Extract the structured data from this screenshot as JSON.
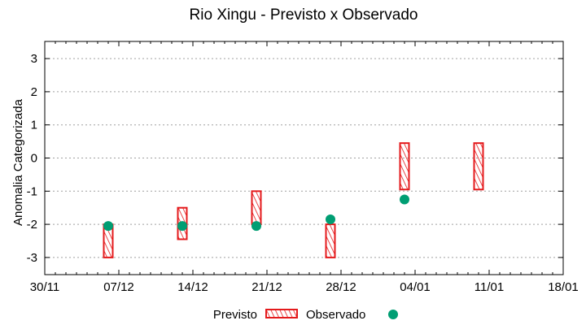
{
  "chart_data": {
    "type": "box-range + scatter",
    "title": "Rio Xingu - Previsto x Observado",
    "xlabel": "",
    "ylabel": "Anomalia Categorizada",
    "ylim": [
      -3.5,
      3.5
    ],
    "yticks": [
      3,
      2,
      1,
      0,
      -1,
      -2,
      -3
    ],
    "xlim": [
      "30/11",
      "18/01"
    ],
    "xticks": [
      "30/11",
      "07/12",
      "14/12",
      "21/12",
      "28/12",
      "04/01",
      "11/01",
      "18/01"
    ],
    "grid": "horizontal dotted",
    "legend_position": "bottom",
    "series": [
      {
        "name": "Previsto",
        "style": "hatched box (red)",
        "color": "#e41a1c",
        "points": [
          {
            "x": "06/12",
            "low": -3.0,
            "high": -2.0
          },
          {
            "x": "13/12",
            "low": -2.45,
            "high": -1.5
          },
          {
            "x": "20/12",
            "low": -2.0,
            "high": -1.0
          },
          {
            "x": "27/12",
            "low": -3.0,
            "high": -2.0
          },
          {
            "x": "03/01",
            "low": -0.95,
            "high": 0.45
          },
          {
            "x": "10/01",
            "low": -0.95,
            "high": 0.45
          }
        ]
      },
      {
        "name": "Observado",
        "style": "filled circle (green)",
        "color": "#009e73",
        "points": [
          {
            "x": "06/12",
            "y": -2.05
          },
          {
            "x": "13/12",
            "y": -2.05
          },
          {
            "x": "20/12",
            "y": -2.05
          },
          {
            "x": "27/12",
            "y": -1.85
          },
          {
            "x": "03/01",
            "y": -1.25
          }
        ]
      }
    ]
  },
  "legend": {
    "previsto_label": "Previsto",
    "observado_label": "Observado"
  }
}
